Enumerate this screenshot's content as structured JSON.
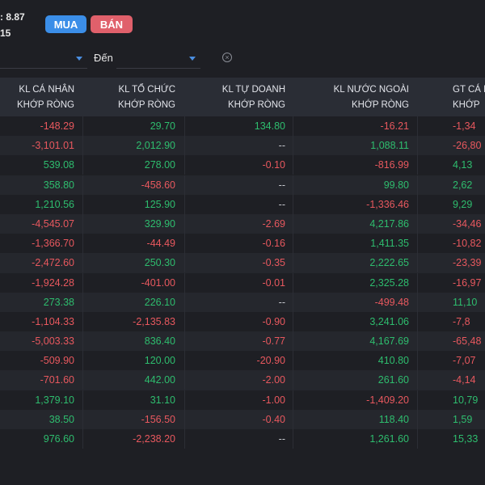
{
  "header": {
    "price_line1": ": 8.87",
    "price_line2": "15",
    "buy_label": "MUA",
    "sell_label": "BÁN"
  },
  "filters": {
    "to_label": "Đến",
    "clear_icon": "circle-x-icon"
  },
  "columns": [
    {
      "line1": "KL CÁ NHÂN",
      "line2": "KHỚP RÒNG"
    },
    {
      "line1": "KL TỔ CHỨC",
      "line2": "KHỚP RÒNG"
    },
    {
      "line1": "KL TỰ DOANH",
      "line2": "KHỚP RÒNG"
    },
    {
      "line1": "KL NƯỚC NGOÀI",
      "line2": "KHỚP RÒNG"
    },
    {
      "line1": "GT CÁ N",
      "line2": "KHỚP"
    }
  ],
  "rows": [
    [
      "-148.29",
      "29.70",
      "134.80",
      "-16.21",
      "-1,34"
    ],
    [
      "-3,101.01",
      "2,012.90",
      "--",
      "1,088.11",
      "-26,80"
    ],
    [
      "539.08",
      "278.00",
      "-0.10",
      "-816.99",
      "4,13"
    ],
    [
      "358.80",
      "-458.60",
      "--",
      "99.80",
      "2,62"
    ],
    [
      "1,210.56",
      "125.90",
      "--",
      "-1,336.46",
      "9,29"
    ],
    [
      "-4,545.07",
      "329.90",
      "-2.69",
      "4,217.86",
      "-34,46"
    ],
    [
      "-1,366.70",
      "-44.49",
      "-0.16",
      "1,411.35",
      "-10,82"
    ],
    [
      "-2,472.60",
      "250.30",
      "-0.35",
      "2,222.65",
      "-23,39"
    ],
    [
      "-1,924.28",
      "-401.00",
      "-0.01",
      "2,325.28",
      "-16,97"
    ],
    [
      "273.38",
      "226.10",
      "--",
      "-499.48",
      "11,10"
    ],
    [
      "-1,104.33",
      "-2,135.83",
      "-0.90",
      "3,241.06",
      "-7,8"
    ],
    [
      "-5,003.33",
      "836.40",
      "-0.77",
      "4,167.69",
      "-65,48"
    ],
    [
      "-509.90",
      "120.00",
      "-20.90",
      "410.80",
      "-7,07"
    ],
    [
      "-701.60",
      "442.00",
      "-2.00",
      "261.60",
      "-4,14"
    ],
    [
      "1,379.10",
      "31.10",
      "-1.00",
      "-1,409.20",
      "10,79"
    ],
    [
      "38.50",
      "-156.50",
      "-0.40",
      "118.40",
      "1,59"
    ],
    [
      "976.60",
      "-2,238.20",
      "--",
      "1,261.60",
      "15,33"
    ]
  ],
  "colors": {
    "positive": "#2ebd6e",
    "negative": "#e8585e",
    "buy": "#3b8ee8",
    "sell": "#e0606b"
  }
}
